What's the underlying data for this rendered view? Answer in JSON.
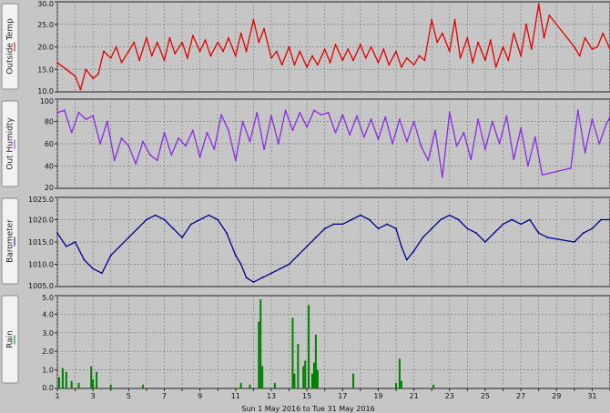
{
  "chart_data": [
    {
      "type": "line",
      "label": "Outside Temp",
      "color": "#e00000",
      "ylim": [
        10,
        30
      ],
      "yticks": [
        "10.0",
        "15.0",
        "20.0",
        "25.0",
        "30.0"
      ],
      "x": [
        1,
        1.5,
        2,
        2.3,
        2.6,
        3,
        3.3,
        3.6,
        4,
        4.3,
        4.6,
        5,
        5.3,
        5.6,
        6,
        6.3,
        6.6,
        7,
        7.3,
        7.6,
        8,
        8.3,
        8.6,
        9,
        9.3,
        9.6,
        10,
        10.3,
        10.6,
        11,
        11.3,
        11.6,
        12,
        12.3,
        12.6,
        13,
        13.3,
        13.6,
        14,
        14.3,
        14.6,
        15,
        15.3,
        15.6,
        16,
        16.3,
        16.6,
        17,
        17.3,
        17.6,
        18,
        18.3,
        18.6,
        19,
        19.3,
        19.6,
        20,
        20.3,
        20.6,
        21,
        21.3,
        21.6,
        22,
        22.3,
        22.6,
        23,
        23.3,
        23.6,
        24,
        24.3,
        24.6,
        25,
        25.3,
        25.6,
        26,
        26.3,
        26.6,
        27,
        27.3,
        27.6,
        28,
        28.3,
        28.6,
        30,
        30.3,
        30.6,
        31,
        31.3,
        31.6,
        32
      ],
      "y": [
        16.5,
        15,
        13.5,
        10.5,
        15,
        13,
        14,
        19,
        17.5,
        20,
        16.5,
        19,
        21,
        17,
        22,
        18,
        21,
        17,
        22,
        18.5,
        21,
        17.5,
        22.5,
        19,
        21.5,
        18,
        21,
        19,
        22,
        18,
        23,
        19,
        26,
        21,
        24,
        17.5,
        19,
        16,
        20,
        16,
        19,
        15.5,
        18,
        16,
        19.5,
        16.5,
        20.5,
        17,
        19.5,
        17,
        20.5,
        17.5,
        20,
        16.5,
        19.5,
        16,
        19,
        15.5,
        17.5,
        16,
        18,
        17,
        26,
        21,
        23,
        19,
        26,
        17.5,
        22,
        16.5,
        21,
        17,
        21.5,
        15.5,
        20,
        17,
        23,
        18,
        25,
        19.5,
        29.5,
        22,
        27,
        20,
        18,
        22,
        19.5,
        20,
        23,
        19.5
      ],
      "point_label": "temp-point"
    },
    {
      "type": "line",
      "label": "Out Humidty",
      "color": "#8a2be2",
      "ylim": [
        20,
        100
      ],
      "yticks": [
        "20",
        "40",
        "60",
        "80",
        "100"
      ],
      "x": [
        1,
        1.4,
        1.8,
        2.2,
        2.6,
        3,
        3.4,
        3.8,
        4.2,
        4.6,
        5,
        5.4,
        5.8,
        6.2,
        6.6,
        7,
        7.4,
        7.8,
        8.2,
        8.6,
        9,
        9.4,
        9.8,
        10.2,
        10.6,
        11,
        11.4,
        11.8,
        12.2,
        12.6,
        13,
        13.4,
        13.8,
        14.2,
        14.6,
        15,
        15.4,
        15.8,
        16.2,
        16.6,
        17,
        17.4,
        17.8,
        18.2,
        18.6,
        19,
        19.4,
        19.8,
        20.2,
        20.6,
        21,
        21.4,
        21.8,
        22.2,
        22.6,
        23,
        23.4,
        23.8,
        24.2,
        24.6,
        25,
        25.4,
        25.8,
        26.2,
        26.6,
        27,
        27.4,
        27.8,
        28.2,
        29.8,
        30.2,
        30.6,
        31,
        31.4,
        31.8,
        32
      ],
      "y": [
        88,
        90,
        70,
        88,
        82,
        85,
        60,
        80,
        45,
        65,
        58,
        42,
        62,
        50,
        45,
        70,
        50,
        65,
        58,
        72,
        48,
        70,
        55,
        86,
        72,
        45,
        80,
        62,
        88,
        55,
        85,
        60,
        90,
        72,
        88,
        75,
        90,
        86,
        88,
        70,
        86,
        68,
        85,
        66,
        82,
        64,
        84,
        60,
        82,
        62,
        80,
        58,
        45,
        72,
        30,
        88,
        58,
        70,
        46,
        82,
        55,
        80,
        60,
        85,
        46,
        74,
        40,
        66,
        32,
        38,
        90,
        52,
        82,
        60,
        78,
        84
      ],
      "point_label": "humidity-point"
    },
    {
      "type": "line",
      "label": "Barometer",
      "color": "#00008b",
      "ylim": [
        1005,
        1025
      ],
      "yticks": [
        "1005.0",
        "1010.0",
        "1015.0",
        "1020.0",
        "1025.0"
      ],
      "x": [
        1,
        1.5,
        2,
        2.5,
        3,
        3.5,
        4,
        4.5,
        5,
        5.5,
        6,
        6.5,
        7,
        7.5,
        8,
        8.5,
        9,
        9.5,
        10,
        10.5,
        11,
        11.3,
        11.6,
        12,
        12.5,
        13,
        13.5,
        14,
        14.5,
        15,
        15.5,
        16,
        16.5,
        17,
        17.5,
        18,
        18.5,
        19,
        19.5,
        20,
        20.3,
        20.6,
        21,
        21.5,
        22,
        22.5,
        23,
        23.5,
        24,
        24.5,
        25,
        25.5,
        26,
        26.5,
        27,
        27.5,
        28,
        28.5,
        30,
        30.5,
        31,
        31.5,
        32
      ],
      "y": [
        1017,
        1014,
        1015,
        1011,
        1009,
        1008,
        1012,
        1014,
        1016,
        1018,
        1020,
        1021,
        1020,
        1018,
        1016,
        1019,
        1020,
        1021,
        1020,
        1017,
        1012,
        1010,
        1007,
        1006,
        1007,
        1008,
        1009,
        1010,
        1012,
        1014,
        1016,
        1018,
        1019,
        1019,
        1020,
        1021,
        1020,
        1018,
        1019,
        1018,
        1014,
        1011,
        1013,
        1016,
        1018,
        1020,
        1021,
        1020,
        1018,
        1017,
        1015,
        1017,
        1019,
        1020,
        1019,
        1020,
        1017,
        1016,
        1015,
        1017,
        1018,
        1020,
        1020
      ],
      "point_label": "pressure-point"
    },
    {
      "type": "bar",
      "label": "Rain",
      "color": "#008000",
      "ylim": [
        0,
        5
      ],
      "yticks": [
        "0.0",
        "1.0",
        "2.0",
        "3.0",
        "4.0",
        "5.0"
      ],
      "x": [
        1.1,
        1.3,
        1.5,
        1.8,
        2.2,
        2.9,
        3.0,
        3.2,
        4.0,
        5.8,
        11.3,
        11.8,
        12.3,
        12.4,
        12.5,
        13.2,
        14.2,
        14.3,
        14.5,
        14.8,
        14.9,
        15.1,
        15.3,
        15.4,
        15.5,
        15.6,
        17.6,
        20.0,
        20.2,
        20.3,
        22.1
      ],
      "values": [
        0.6,
        1.1,
        0.9,
        0.4,
        0.3,
        1.2,
        0.5,
        0.9,
        0.2,
        0.2,
        0.3,
        0.2,
        3.6,
        4.8,
        1.2,
        0.3,
        3.8,
        0.8,
        2.4,
        1.2,
        1.5,
        4.5,
        0.8,
        1.4,
        2.9,
        1.0,
        0.8,
        0.3,
        1.6,
        0.4,
        0.2
      ],
      "bar_label": "rain-bar"
    }
  ],
  "xaxis": {
    "min": 1,
    "max": 32,
    "ticks": [
      "1",
      "3",
      "5",
      "7",
      "9",
      "11",
      "13",
      "15",
      "17",
      "19",
      "21",
      "23",
      "25",
      "27",
      "29",
      "31"
    ],
    "caption": "Sun 1 May 2016  to  Tue 31 May 2016"
  },
  "colors": {
    "grid": "#808080",
    "plot_bg": "#c6c6c6"
  }
}
